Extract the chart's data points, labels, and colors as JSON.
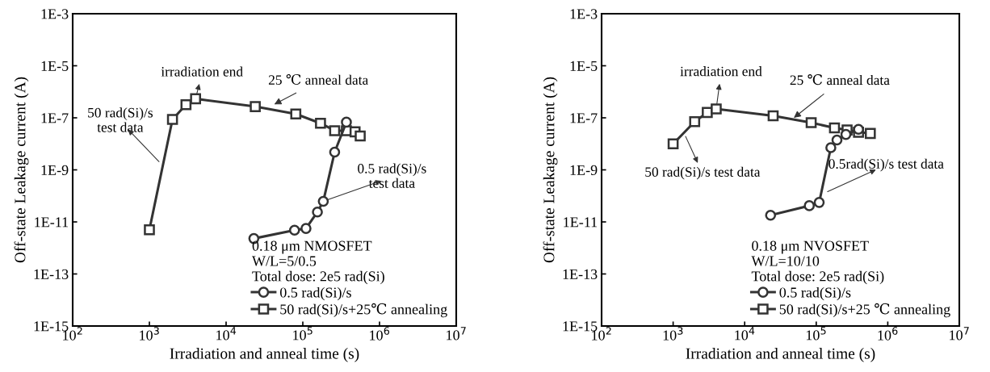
{
  "chart_data": [
    {
      "type": "line",
      "xlabel": "Irradiation and anneal time (s)",
      "ylabel": "Off-state Leakage current (A)",
      "log": "xy",
      "grid": false,
      "legend": "bottom right",
      "legend_title": "0.18 μm NMOSFET\nW/L=5/0.5\nTotal dose: 2e5 rad(Si)",
      "xlim": [
        100,
        10000000
      ],
      "xticks": [
        {
          "value": 100,
          "label": "10$^{2}$"
        },
        {
          "value": 1000,
          "label": "10$^{3}$"
        },
        {
          "value": 10000,
          "label": "10$^{4}$"
        },
        {
          "value": 100000,
          "label": "10$^{5}$"
        },
        {
          "value": 1000000,
          "label": "10$^{6}$"
        },
        {
          "value": 10000000,
          "label": "10$^{7}$"
        }
      ],
      "ylim": [
        1e-15,
        0.001
      ],
      "yticks": [
        {
          "value": 1e-15,
          "label": "1E-15"
        },
        {
          "value": 1e-13,
          "label": "1E-13"
        },
        {
          "value": 1e-11,
          "label": "1E-11"
        },
        {
          "value": 1e-09,
          "label": "1E-9"
        },
        {
          "value": 1e-07,
          "label": "1E-7"
        },
        {
          "value": 1e-05,
          "label": "1E-5"
        },
        {
          "value": 0.001,
          "label": "1E-3"
        }
      ],
      "series": [
        {
          "name": "0.5 rad(Si)/s",
          "color": "#333333",
          "marker": "circle",
          "x": [
            23000,
            78000,
            110000,
            155000,
            185000,
            260000,
            370000
          ],
          "values": [
            2.3e-12,
            4.8e-12,
            5.6e-12,
            2.4e-11,
            6.2e-11,
            4.8e-09,
            6.8e-08
          ]
        },
        {
          "name": "50 rad(Si)/s+25℃ annealing",
          "color": "#333333",
          "marker": "square",
          "x": [
            1000,
            2000,
            3000,
            4000,
            24000,
            81000,
            170000,
            260000,
            370000,
            480000,
            560000
          ],
          "values": [
            5e-12,
            8.7e-08,
            3.2e-07,
            5.4e-07,
            2.7e-07,
            1.4e-07,
            6.2e-08,
            3.2e-08,
            3.2e-08,
            2.9e-08,
            2e-08
          ]
        }
      ],
      "annotations": [
        {
          "text": "irradiation end",
          "x": 4000,
          "y": 5.4e-07
        },
        {
          "text": "25 ℃ anneal data",
          "x": 40000,
          "y": 3e-07
        },
        {
          "text": "50 rad(Si)/s\ntest data",
          "x": 1400,
          "y": 1.8e-09
        },
        {
          "text": "0.5 rad(Si)/s\ntest data",
          "x": 185000,
          "y": 6.2e-11
        }
      ]
    },
    {
      "type": "line",
      "xlabel": "Irradiation and anneal time (s)",
      "ylabel": "Off-state Leakage current (A)",
      "log": "xy",
      "grid": false,
      "legend": "bottom right",
      "legend_title": "0.18 μm NVOSFET\nW/L=10/10\nTotal dose: 2e5 rad(Si)",
      "xlim": [
        100,
        10000000
      ],
      "xticks": [
        {
          "value": 100,
          "label": "10$^{2}$"
        },
        {
          "value": 1000,
          "label": "10$^{3}$"
        },
        {
          "value": 10000,
          "label": "10$^{4}$"
        },
        {
          "value": 100000,
          "label": "10$^{5}$"
        },
        {
          "value": 1000000,
          "label": "10$^{6}$"
        },
        {
          "value": 10000000,
          "label": "10$^{7}$"
        }
      ],
      "ylim": [
        1e-15,
        0.001
      ],
      "yticks": [
        {
          "value": 1e-15,
          "label": "1E-15"
        },
        {
          "value": 1e-13,
          "label": "1E-13"
        },
        {
          "value": 1e-11,
          "label": "1E-11"
        },
        {
          "value": 1e-09,
          "label": "1E-9"
        },
        {
          "value": 1e-07,
          "label": "1E-7"
        },
        {
          "value": 1e-05,
          "label": "1E-5"
        },
        {
          "value": 0.001,
          "label": "1E-3"
        }
      ],
      "series": [
        {
          "name": "0.5 rad(Si)/s",
          "color": "#333333",
          "marker": "circle",
          "x": [
            23000,
            80000,
            110000,
            160000,
            195000,
            260000,
            390000
          ],
          "values": [
            1.8e-11,
            4.2e-11,
            5.6e-11,
            7.1e-09,
            1.4e-08,
            2.3e-08,
            3.6e-08
          ]
        },
        {
          "name": "50 rad(Si)/s+25 ℃ annealing",
          "color": "#333333",
          "marker": "square",
          "x": [
            1000,
            2000,
            3000,
            4000,
            25000,
            85000,
            180000,
            270000,
            390000,
            570000
          ],
          "values": [
            1e-08,
            7.1e-08,
            1.6e-07,
            2.2e-07,
            1.2e-07,
            6.5e-08,
            4.1e-08,
            3.4e-08,
            2.8e-08,
            2.5e-08
          ]
        }
      ],
      "annotations": [
        {
          "text": "irradiation end",
          "x": 4000,
          "y": 2.2e-07
        },
        {
          "text": "25 ℃ anneal data",
          "x": 46000,
          "y": 8.8e-08
        },
        {
          "text": "50 rad(Si)/s test data",
          "x": 1450,
          "y": 2.3e-08
        },
        {
          "text": "0.5rad(Si)/s test data",
          "x": 135000,
          "y": 1.35e-10
        }
      ]
    }
  ]
}
